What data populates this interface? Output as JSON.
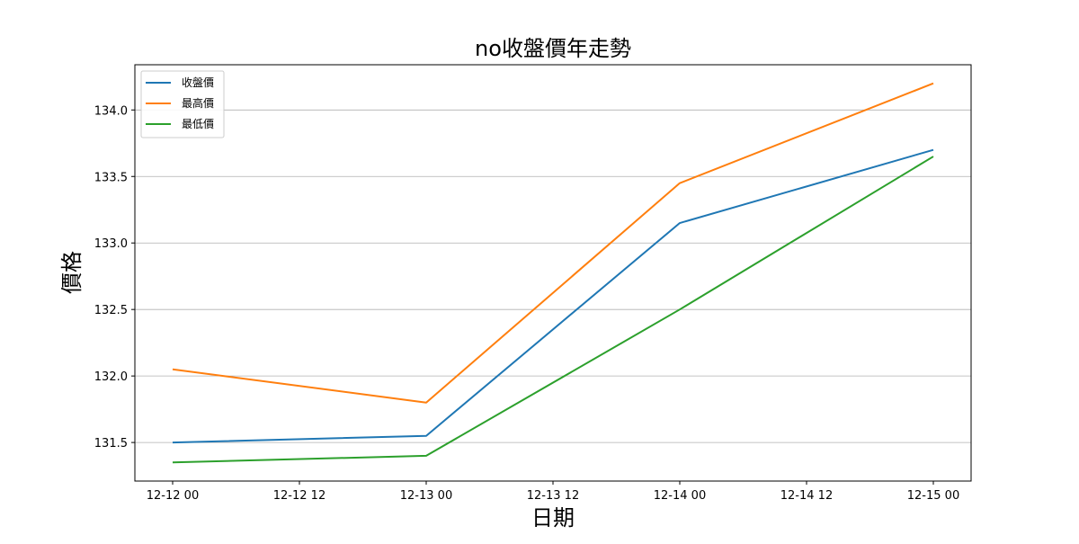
{
  "chart_data": {
    "type": "line",
    "title": "no收盤價年走勢",
    "xlabel": "日期",
    "ylabel": "價格",
    "x": [
      "12-12 00",
      "12-13 00",
      "12-14 00",
      "12-15 00"
    ],
    "x_ticks": [
      "12-12 00",
      "12-12 12",
      "12-13 00",
      "12-13 12",
      "12-14 00",
      "12-14 12",
      "12-15 00"
    ],
    "y_ticks": [
      "131.5",
      "132.0",
      "132.5",
      "133.0",
      "133.5",
      "134.0"
    ],
    "ylim": [
      131.21,
      134.34
    ],
    "grid": "y-axis horizontal lines",
    "legend_position": "top-left",
    "series": [
      {
        "name": "收盤價",
        "color": "#1f77b4",
        "values": [
          131.5,
          131.55,
          133.15,
          133.7
        ]
      },
      {
        "name": "最高價",
        "color": "#ff7f0e",
        "values": [
          132.05,
          131.8,
          133.45,
          134.2
        ]
      },
      {
        "name": "最低價",
        "color": "#2ca02c",
        "values": [
          131.35,
          131.4,
          132.5,
          133.65
        ]
      }
    ]
  }
}
